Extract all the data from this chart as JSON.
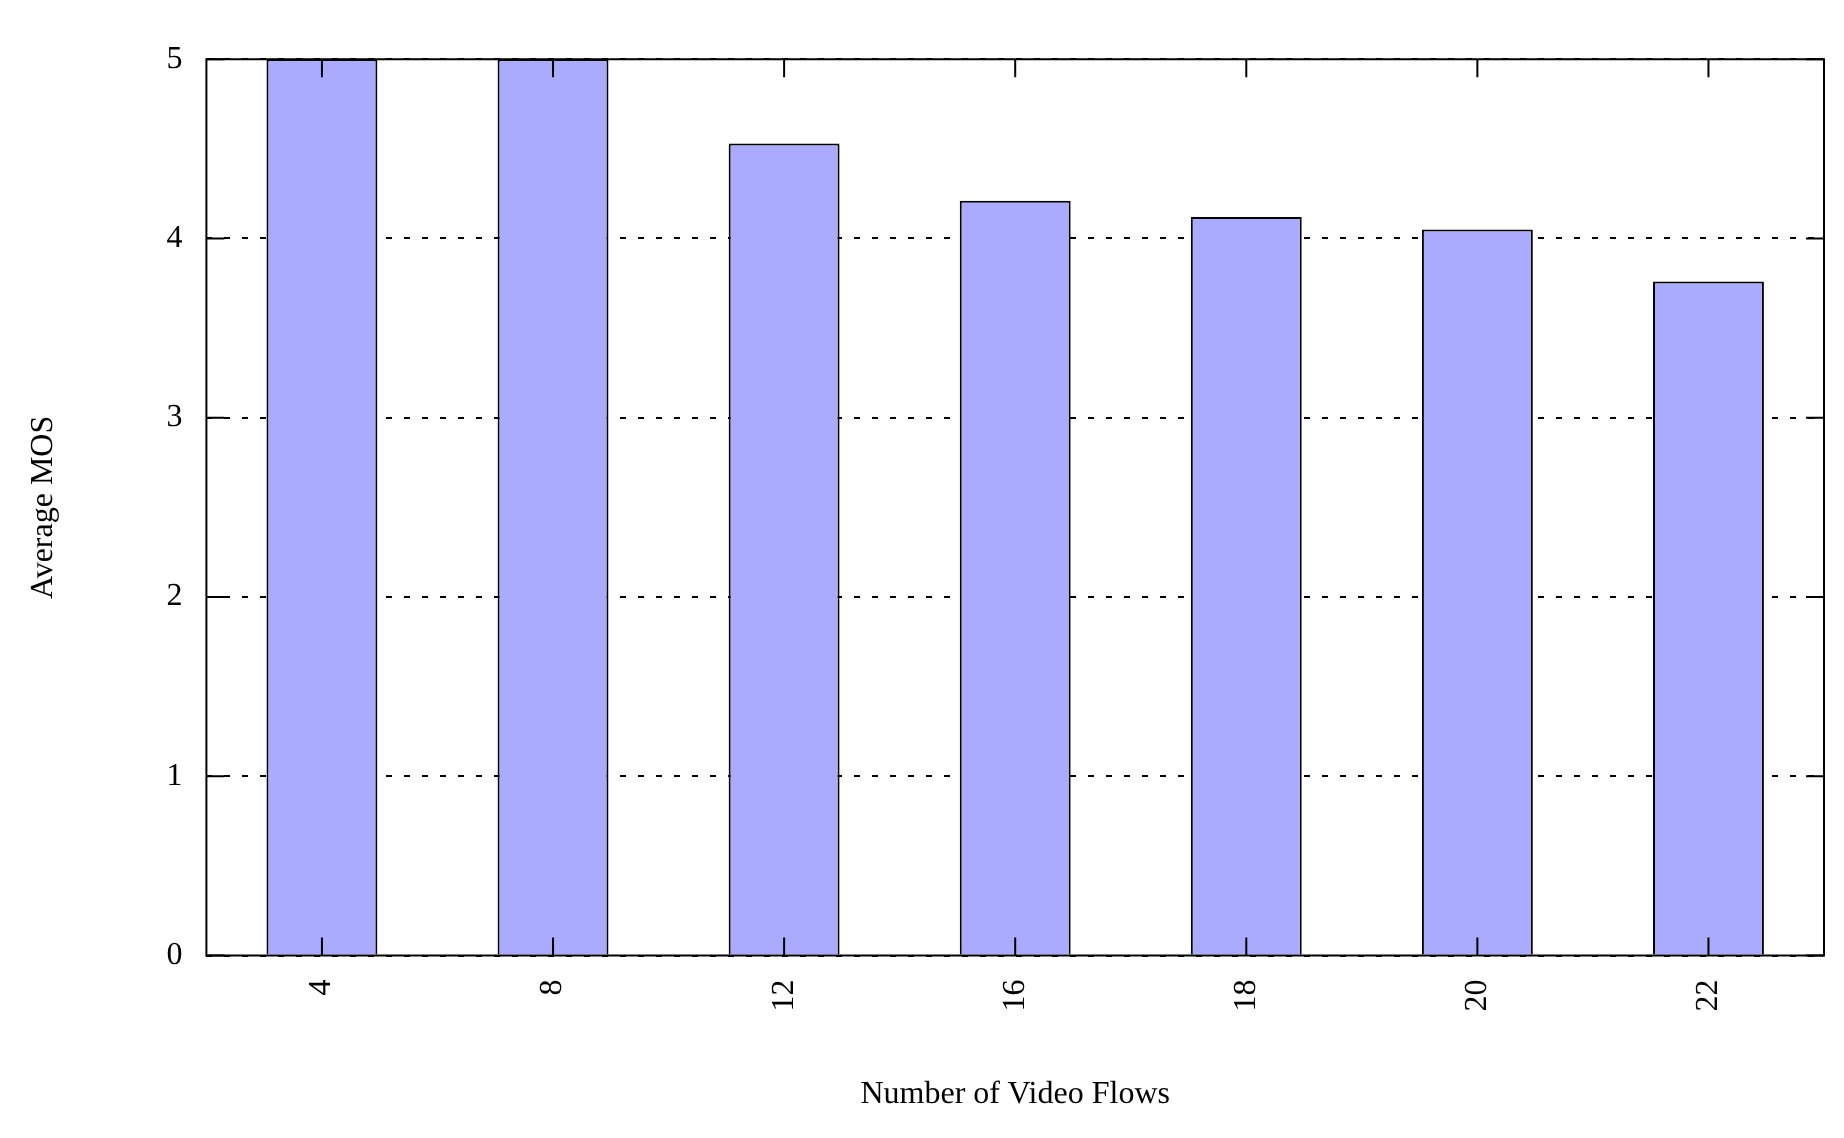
{
  "chart_data": {
    "type": "bar",
    "xlabel": "Number of Video Flows",
    "ylabel": "Average MOS",
    "categories": [
      "4",
      "8",
      "12",
      "16",
      "18",
      "20",
      "22"
    ],
    "series": [
      {
        "color": "#aaaaff",
        "values": [
          5,
          5,
          4.53,
          4.21,
          4.12,
          4.05,
          3.76
        ]
      }
    ],
    "ylim": [
      0,
      5
    ],
    "yticks": [
      0,
      1,
      2,
      3,
      4,
      5
    ],
    "grid": "y",
    "legend": false
  }
}
